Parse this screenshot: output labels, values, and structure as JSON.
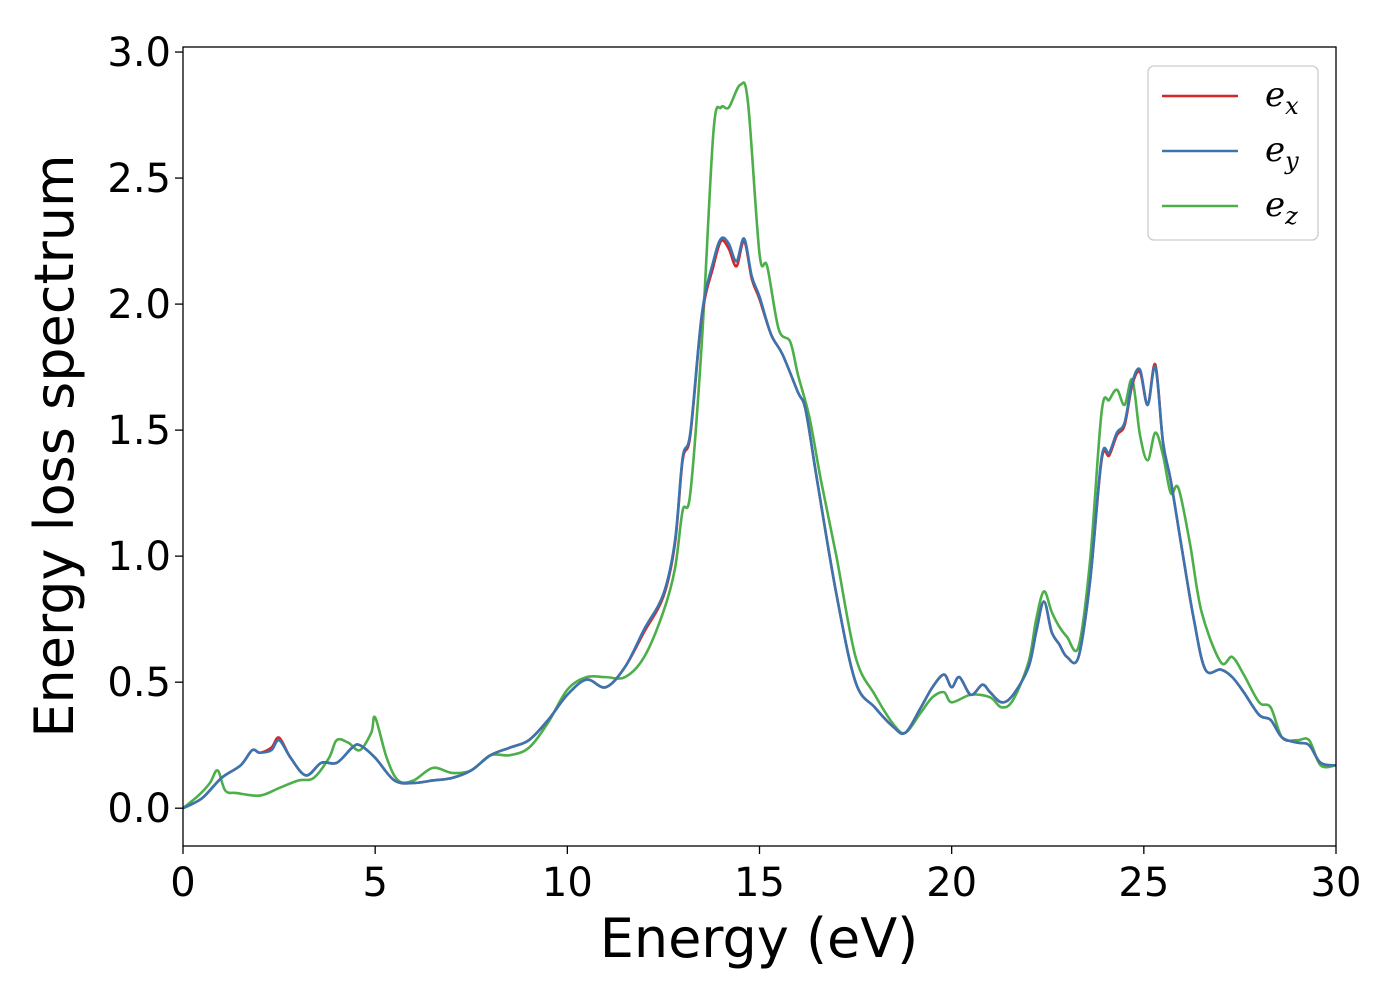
{
  "chart_data": {
    "type": "line",
    "title": "",
    "xlabel": "Energy (eV)",
    "ylabel": "Energy loss spectrum",
    "xlim": [
      0,
      30
    ],
    "ylim": [
      -0.15,
      3.02
    ],
    "xticks": [
      0,
      5,
      10,
      15,
      20,
      25,
      30
    ],
    "xtick_labels": [
      "0",
      "5",
      "10",
      "15",
      "20",
      "25",
      "30"
    ],
    "yticks": [
      0.0,
      0.5,
      1.0,
      1.5,
      2.0,
      2.5,
      3.0
    ],
    "ytick_labels": [
      "0.0",
      "0.5",
      "1.0",
      "1.5",
      "2.0",
      "2.5",
      "3.0"
    ],
    "grid": false,
    "legend": {
      "position": "top-right"
    },
    "series": [
      {
        "name": "e",
        "subscript": "x",
        "color": "#d62728",
        "x": [
          0,
          0.5,
          1.0,
          1.5,
          1.8,
          2.0,
          2.3,
          2.5,
          2.8,
          3.2,
          3.6,
          4.0,
          4.4,
          4.6,
          5.0,
          5.5,
          6.0,
          6.5,
          7.0,
          7.5,
          8.0,
          8.5,
          9.0,
          9.5,
          10.0,
          10.5,
          11.0,
          11.5,
          12.0,
          12.5,
          12.8,
          13.0,
          13.2,
          13.5,
          13.8,
          14.0,
          14.2,
          14.4,
          14.6,
          14.8,
          15.0,
          15.3,
          15.6,
          16.0,
          16.2,
          16.5,
          17.0,
          17.5,
          18.0,
          18.5,
          18.8,
          19.2,
          19.5,
          19.8,
          20.0,
          20.2,
          20.5,
          20.8,
          21.0,
          21.3,
          21.6,
          22.0,
          22.2,
          22.4,
          22.6,
          22.8,
          23.0,
          23.3,
          23.6,
          23.9,
          24.1,
          24.3,
          24.5,
          24.7,
          24.9,
          25.1,
          25.3,
          25.5,
          25.7,
          26.0,
          26.3,
          26.6,
          27.0,
          27.3,
          27.6,
          28.0,
          28.3,
          28.6,
          29.0,
          29.3,
          29.6,
          30.0
        ],
        "values": [
          0,
          0.04,
          0.12,
          0.17,
          0.23,
          0.22,
          0.24,
          0.28,
          0.2,
          0.13,
          0.18,
          0.18,
          0.24,
          0.25,
          0.2,
          0.11,
          0.1,
          0.11,
          0.12,
          0.15,
          0.21,
          0.24,
          0.27,
          0.35,
          0.45,
          0.51,
          0.48,
          0.56,
          0.7,
          0.84,
          1.05,
          1.38,
          1.48,
          1.95,
          2.15,
          2.25,
          2.22,
          2.15,
          2.25,
          2.1,
          2.02,
          1.88,
          1.8,
          1.65,
          1.58,
          1.3,
          0.85,
          0.5,
          0.4,
          0.32,
          0.3,
          0.4,
          0.48,
          0.53,
          0.48,
          0.52,
          0.45,
          0.49,
          0.46,
          0.42,
          0.45,
          0.56,
          0.7,
          0.82,
          0.7,
          0.65,
          0.6,
          0.6,
          0.9,
          1.38,
          1.4,
          1.48,
          1.52,
          1.68,
          1.73,
          1.6,
          1.76,
          1.45,
          1.3,
          1.02,
          0.75,
          0.55,
          0.55,
          0.52,
          0.46,
          0.37,
          0.35,
          0.28,
          0.26,
          0.25,
          0.18,
          0.17
        ]
      },
      {
        "name": "e",
        "subscript": "y",
        "color": "#3a75b0",
        "x": [
          0,
          0.5,
          1.0,
          1.5,
          1.8,
          2.0,
          2.3,
          2.5,
          2.8,
          3.2,
          3.6,
          4.0,
          4.4,
          4.6,
          5.0,
          5.5,
          6.0,
          6.5,
          7.0,
          7.5,
          8.0,
          8.5,
          9.0,
          9.5,
          10.0,
          10.5,
          11.0,
          11.5,
          12.0,
          12.5,
          12.8,
          13.0,
          13.2,
          13.5,
          13.8,
          14.0,
          14.2,
          14.4,
          14.6,
          14.8,
          15.0,
          15.3,
          15.6,
          16.0,
          16.2,
          16.5,
          17.0,
          17.5,
          18.0,
          18.5,
          18.8,
          19.2,
          19.5,
          19.8,
          20.0,
          20.2,
          20.5,
          20.8,
          21.0,
          21.3,
          21.6,
          22.0,
          22.2,
          22.4,
          22.6,
          22.8,
          23.0,
          23.3,
          23.6,
          23.9,
          24.1,
          24.3,
          24.5,
          24.7,
          24.9,
          25.1,
          25.3,
          25.5,
          25.7,
          26.0,
          26.3,
          26.6,
          27.0,
          27.3,
          27.6,
          28.0,
          28.3,
          28.6,
          29.0,
          29.3,
          29.6,
          30.0
        ],
        "values": [
          0,
          0.04,
          0.12,
          0.17,
          0.23,
          0.22,
          0.23,
          0.27,
          0.2,
          0.13,
          0.18,
          0.18,
          0.24,
          0.25,
          0.2,
          0.11,
          0.1,
          0.11,
          0.12,
          0.15,
          0.21,
          0.24,
          0.27,
          0.35,
          0.45,
          0.51,
          0.48,
          0.56,
          0.71,
          0.85,
          1.06,
          1.39,
          1.49,
          1.96,
          2.17,
          2.26,
          2.24,
          2.17,
          2.26,
          2.11,
          2.03,
          1.88,
          1.8,
          1.65,
          1.58,
          1.3,
          0.85,
          0.5,
          0.4,
          0.32,
          0.3,
          0.4,
          0.48,
          0.53,
          0.48,
          0.52,
          0.45,
          0.49,
          0.46,
          0.42,
          0.45,
          0.56,
          0.7,
          0.82,
          0.7,
          0.65,
          0.6,
          0.6,
          0.9,
          1.39,
          1.41,
          1.49,
          1.53,
          1.69,
          1.74,
          1.6,
          1.75,
          1.45,
          1.3,
          1.02,
          0.75,
          0.55,
          0.55,
          0.52,
          0.46,
          0.37,
          0.35,
          0.28,
          0.26,
          0.25,
          0.18,
          0.17
        ]
      },
      {
        "name": "e",
        "subscript": "z",
        "color": "#4daf4a",
        "x": [
          0,
          0.4,
          0.7,
          0.9,
          1.1,
          1.4,
          2.0,
          2.5,
          3.0,
          3.4,
          3.8,
          4.0,
          4.3,
          4.6,
          4.9,
          5.0,
          5.3,
          5.6,
          6.0,
          6.5,
          7.0,
          7.5,
          8.0,
          8.5,
          9.0,
          9.5,
          10.0,
          10.5,
          11.0,
          11.5,
          12.0,
          12.5,
          12.8,
          13.0,
          13.2,
          13.5,
          13.8,
          14.0,
          14.2,
          14.5,
          14.7,
          15.0,
          15.2,
          15.5,
          15.8,
          16.0,
          16.3,
          16.6,
          17.0,
          17.5,
          18.0,
          18.5,
          18.8,
          19.2,
          19.5,
          19.8,
          20.0,
          20.5,
          21.0,
          21.3,
          21.6,
          22.0,
          22.2,
          22.4,
          22.6,
          22.8,
          23.0,
          23.3,
          23.6,
          23.9,
          24.1,
          24.3,
          24.5,
          24.7,
          24.9,
          25.1,
          25.3,
          25.5,
          25.7,
          25.9,
          26.2,
          26.5,
          27.0,
          27.3,
          27.6,
          28.0,
          28.3,
          28.6,
          29.0,
          29.3,
          29.6,
          30.0
        ],
        "values": [
          0,
          0.05,
          0.1,
          0.15,
          0.07,
          0.06,
          0.05,
          0.08,
          0.11,
          0.12,
          0.2,
          0.27,
          0.26,
          0.23,
          0.3,
          0.36,
          0.2,
          0.11,
          0.11,
          0.16,
          0.14,
          0.15,
          0.21,
          0.21,
          0.24,
          0.34,
          0.47,
          0.52,
          0.52,
          0.52,
          0.6,
          0.78,
          0.95,
          1.18,
          1.25,
          1.85,
          2.68,
          2.78,
          2.78,
          2.87,
          2.8,
          2.2,
          2.15,
          1.9,
          1.85,
          1.72,
          1.55,
          1.3,
          1.0,
          0.6,
          0.45,
          0.33,
          0.3,
          0.38,
          0.44,
          0.46,
          0.42,
          0.45,
          0.44,
          0.4,
          0.43,
          0.58,
          0.75,
          0.86,
          0.78,
          0.72,
          0.68,
          0.64,
          0.98,
          1.57,
          1.62,
          1.66,
          1.6,
          1.7,
          1.48,
          1.38,
          1.49,
          1.4,
          1.25,
          1.27,
          1.05,
          0.78,
          0.58,
          0.6,
          0.53,
          0.42,
          0.4,
          0.28,
          0.27,
          0.27,
          0.17,
          0.17
        ]
      }
    ]
  }
}
